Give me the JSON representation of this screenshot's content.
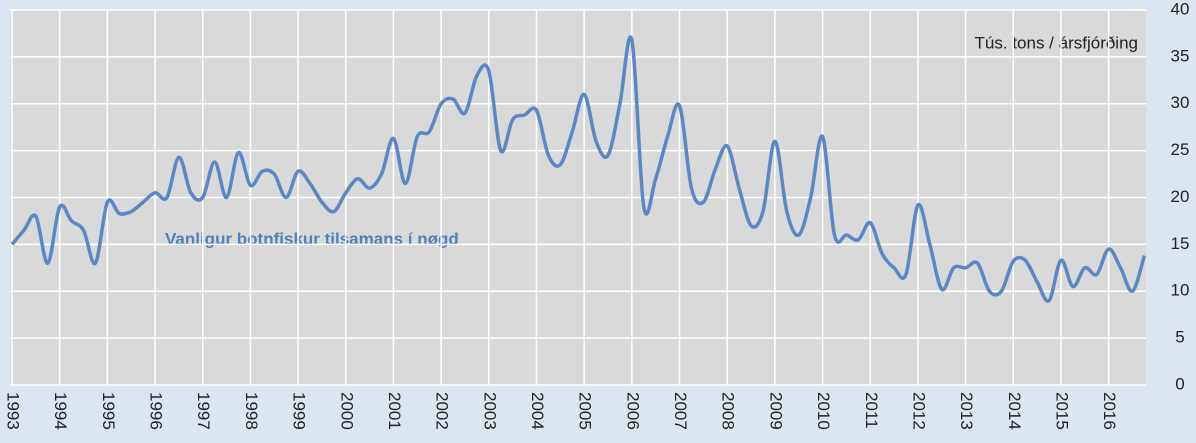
{
  "chart_data": {
    "type": "line",
    "annotations": [
      "Tús. tons / ársfjórðing",
      "Vanligur botnfiskur tilsamans í nøgd"
    ],
    "categories": [
      "1993",
      null,
      null,
      null,
      "1994",
      null,
      null,
      null,
      "1995",
      null,
      null,
      null,
      "1996",
      null,
      null,
      null,
      "1997",
      null,
      null,
      null,
      "1998",
      null,
      null,
      null,
      "1999",
      null,
      null,
      null,
      "2000",
      null,
      null,
      null,
      "2001",
      null,
      null,
      null,
      "2002",
      null,
      null,
      null,
      "2003",
      null,
      null,
      null,
      "2004",
      null,
      null,
      null,
      "2005",
      null,
      null,
      null,
      "2006",
      null,
      null,
      null,
      "2007",
      null,
      null,
      null,
      "2008",
      null,
      null,
      null,
      "2009",
      null,
      null,
      null,
      "2010",
      null,
      null,
      null,
      "2011",
      null,
      null,
      null,
      "2012",
      null,
      null,
      null,
      "2013",
      null,
      null,
      null,
      "2014",
      null,
      null,
      null,
      "2015",
      null,
      null,
      null,
      "2016",
      null,
      null,
      null
    ],
    "series": [
      {
        "name": "Vanligur botnfiskur tilsamans í nøgd",
        "color": "#5a87c5",
        "values": [
          15,
          16.5,
          18,
          13,
          19,
          17.5,
          16.5,
          13,
          19.5,
          18.3,
          18.5,
          19.5,
          20.5,
          20,
          24.3,
          20.5,
          20,
          23.8,
          20,
          24.8,
          21.3,
          22.8,
          22.5,
          20,
          22.8,
          21.5,
          19.5,
          18.5,
          20.5,
          22,
          21,
          22.5,
          26.3,
          21.5,
          26.5,
          27,
          30,
          30.5,
          29,
          33,
          33.5,
          25,
          28.3,
          28.8,
          29.3,
          24.5,
          23.5,
          27,
          31,
          26,
          24.5,
          30,
          36.8,
          19,
          22,
          26.5,
          29.8,
          21,
          19.5,
          23,
          25.5,
          21,
          17,
          18.5,
          26,
          18.5,
          16,
          20,
          26.5,
          16,
          16,
          15.5,
          17.3,
          14,
          12.5,
          11.8,
          19.2,
          15,
          10.2,
          12.5,
          12.5,
          13,
          10,
          10,
          13.2,
          13.3,
          11,
          9,
          13.3,
          10.5,
          12.5,
          11.8,
          14.5,
          12.5,
          10,
          13.8
        ]
      }
    ],
    "ylim": [
      0,
      40
    ],
    "yticks": [
      0,
      5,
      10,
      15,
      20,
      25,
      30,
      35,
      40
    ],
    "grid": true
  }
}
